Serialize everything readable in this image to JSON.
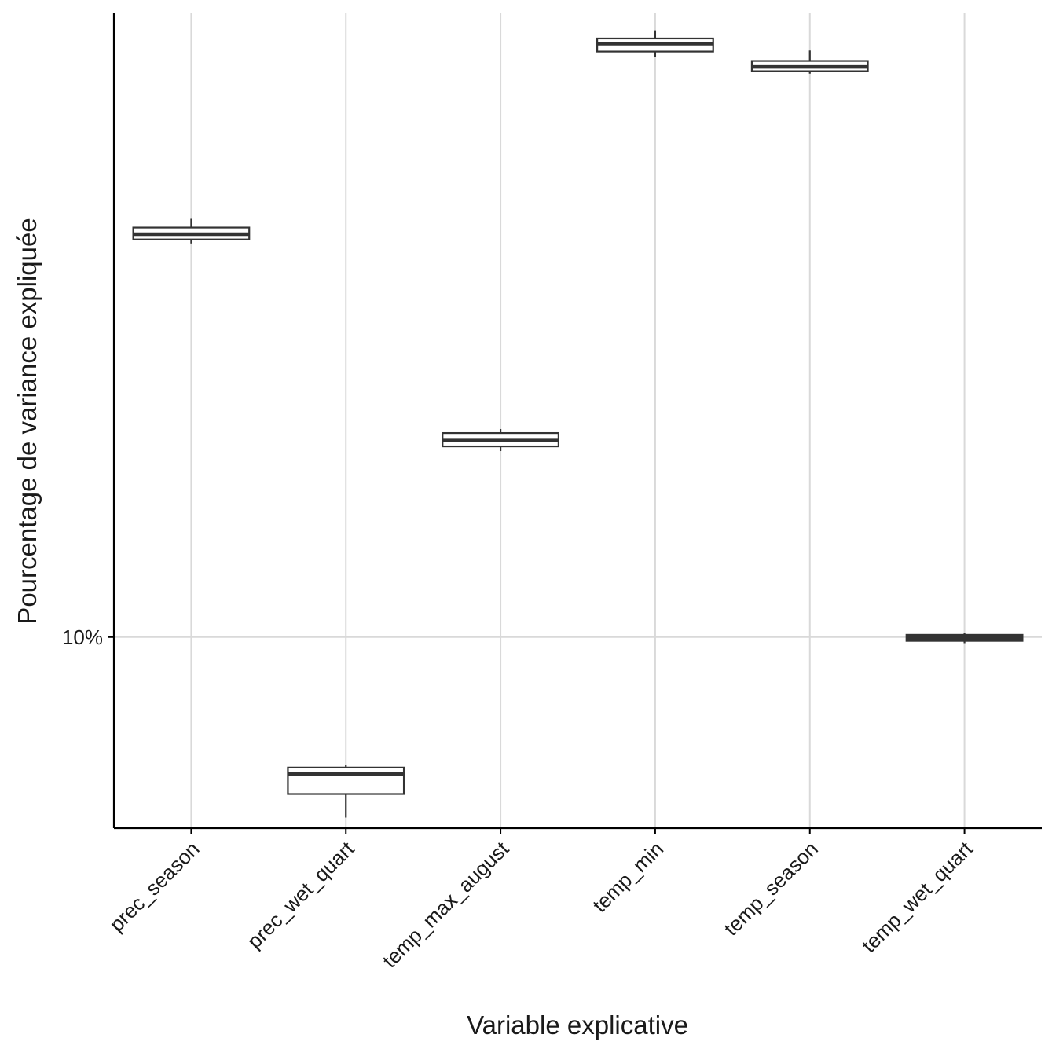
{
  "chart_data": {
    "type": "boxplot",
    "title": "",
    "xlabel": "Variable explicative",
    "ylabel": "Pourcentage de variance expliquée",
    "y_scale": "log",
    "y_ticks": [
      {
        "value": 10,
        "label": "10%"
      }
    ],
    "ylim": [
      7.76,
      22.88
    ],
    "grid": true,
    "legend": "none",
    "colors": {
      "box": "#333333",
      "grid": "#d9d9d9",
      "axis": "#000000"
    },
    "categories": [
      "prec_season",
      "prec_wet_quart",
      "temp_max_august",
      "temp_min",
      "temp_season",
      "temp_wet_quart"
    ],
    "boxes": [
      {
        "category": "prec_season",
        "min": 16.86,
        "q1": 16.95,
        "median": 17.07,
        "q3": 17.22,
        "max": 17.42
      },
      {
        "category": "prec_wet_quart",
        "min": 7.87,
        "q1": 8.12,
        "median": 8.34,
        "q3": 8.41,
        "max": 8.44
      },
      {
        "category": "temp_max_august",
        "min": 12.8,
        "q1": 12.88,
        "median": 12.98,
        "q3": 13.11,
        "max": 13.18
      },
      {
        "category": "temp_min",
        "min": 21.59,
        "q1": 21.75,
        "median": 21.98,
        "q3": 22.13,
        "max": 22.37
      },
      {
        "category": "temp_season",
        "min": 21.12,
        "q1": 21.19,
        "median": 21.31,
        "q3": 21.48,
        "max": 21.78
      },
      {
        "category": "temp_wet_quart",
        "min": 9.92,
        "q1": 9.95,
        "median": 9.99,
        "q3": 10.03,
        "max": 10.06
      }
    ]
  }
}
